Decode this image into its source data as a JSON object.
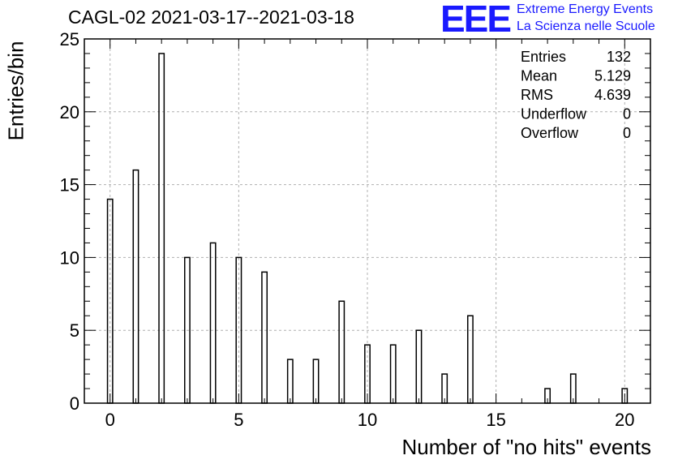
{
  "chart_data": {
    "type": "bar",
    "title": "CAGL-02 2021-03-17--2021-03-18",
    "xlabel": "Number of \"no hits\" events",
    "ylabel": "Entries/bin",
    "xlim": [
      -1,
      21
    ],
    "ylim": [
      0,
      25
    ],
    "x_ticks": [
      0,
      5,
      10,
      15,
      20
    ],
    "y_ticks": [
      0,
      5,
      10,
      15,
      20,
      25
    ],
    "grid": true,
    "x": [
      0,
      1,
      2,
      3,
      4,
      5,
      6,
      7,
      8,
      9,
      10,
      11,
      12,
      13,
      14,
      15,
      16,
      17,
      18,
      19,
      20
    ],
    "values": [
      14,
      16,
      24,
      10,
      11,
      10,
      9,
      3,
      3,
      7,
      4,
      4,
      5,
      2,
      6,
      0,
      0,
      1,
      2,
      0,
      1
    ],
    "stats_box": [
      {
        "label": "Entries",
        "value": "132"
      },
      {
        "label": "Mean",
        "value": "5.129"
      },
      {
        "label": "RMS",
        "value": "4.639"
      },
      {
        "label": "Underflow",
        "value": "0"
      },
      {
        "label": "Overflow",
        "value": "0"
      }
    ]
  },
  "logo": {
    "mark": "EEE",
    "line1": "Extreme Energy Events",
    "line2": "La Scienza nelle Scuole"
  }
}
